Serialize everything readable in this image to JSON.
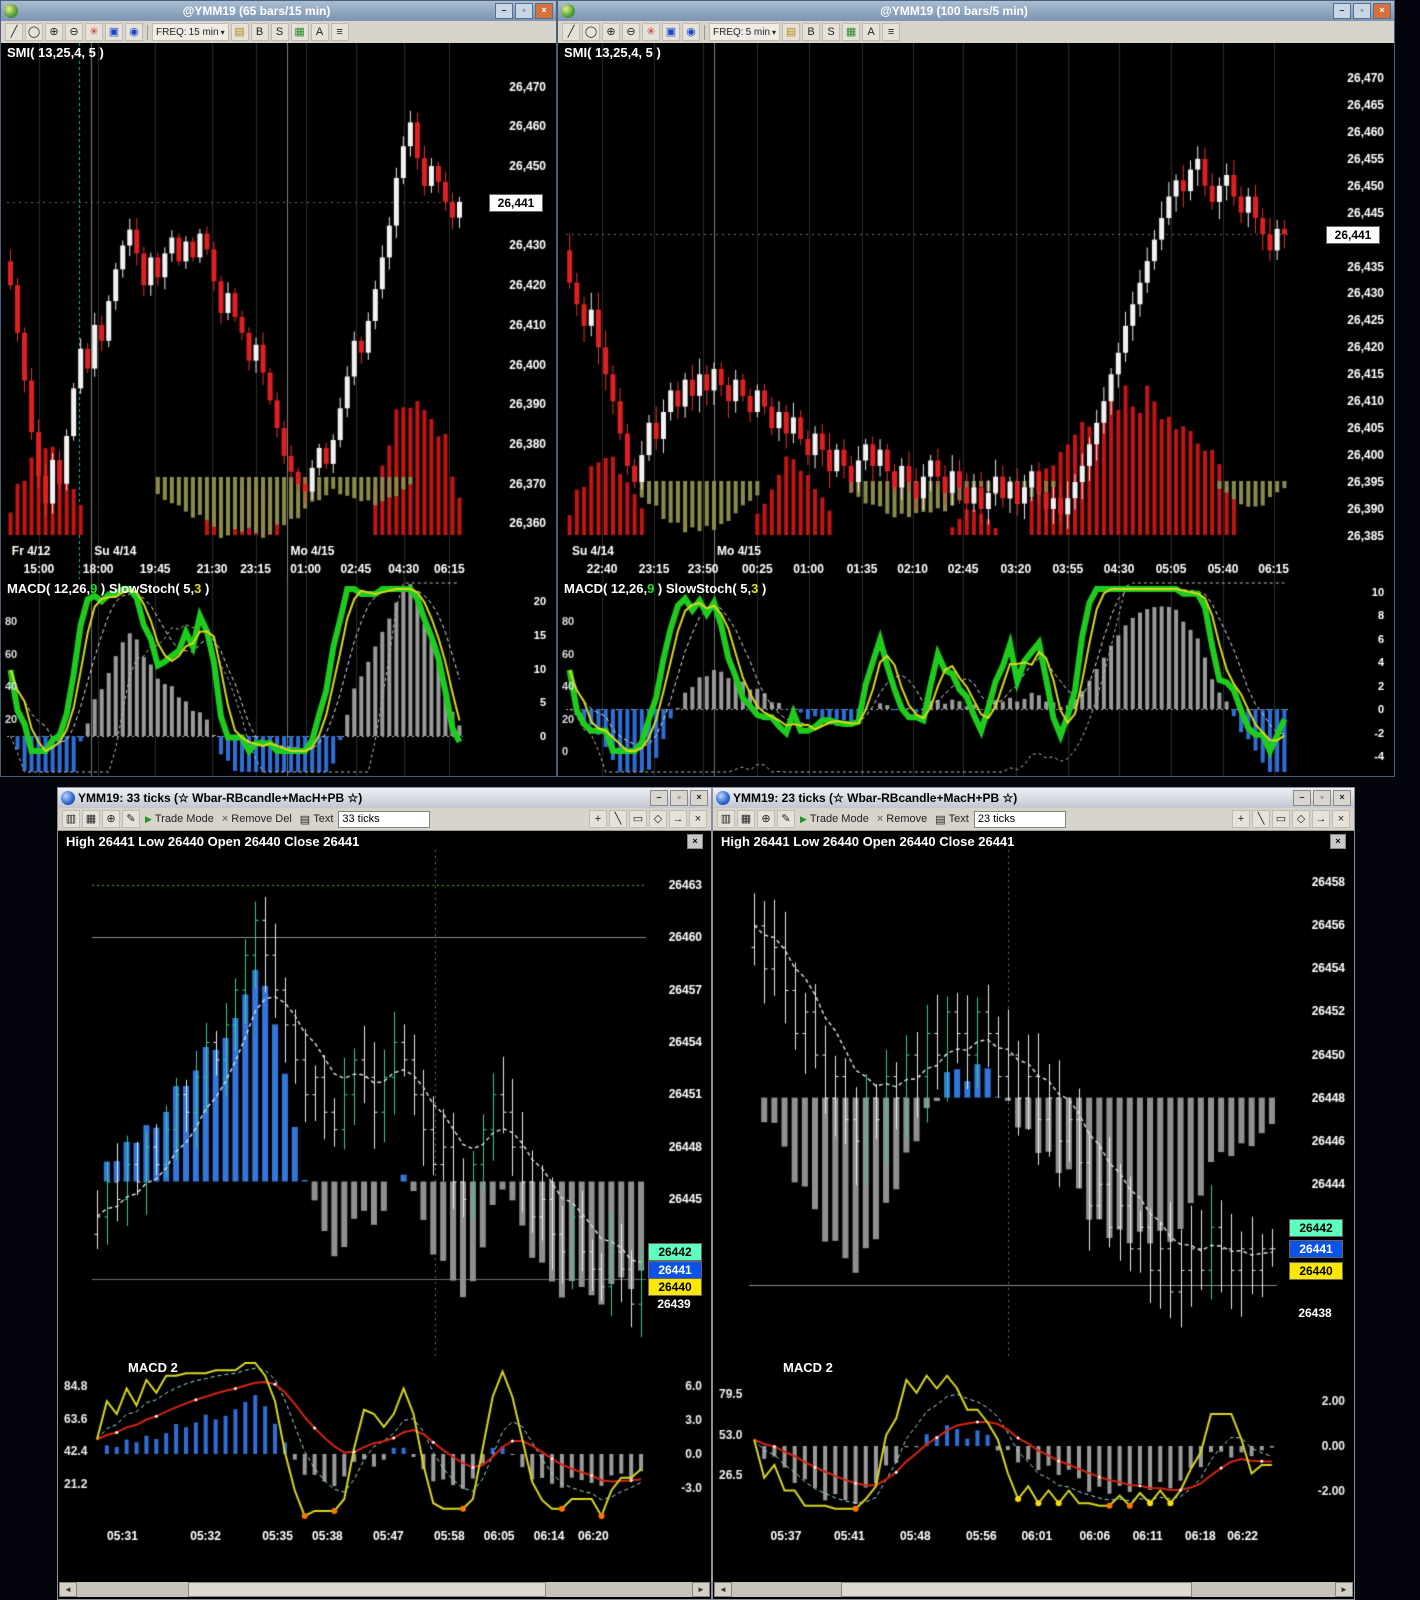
{
  "chrome": {
    "minimize": "–",
    "restore": "▫",
    "close": "×",
    "scroll_left": "◄",
    "scroll_right": "►",
    "panel_close": "×"
  },
  "icons": {
    "line": "╱",
    "ellipse": "◯",
    "zoomin": "⊕",
    "zoomout": "⊖",
    "pattern": "✳",
    "save": "▣",
    "pin": "◉",
    "folder": "▤",
    "grid": "▦",
    "menu": "≡",
    "dd": "▾",
    "candle": "▥",
    "pencil": "✎",
    "doc": "▤",
    "trade": "▶",
    "close": "×",
    "pointer": "+",
    "linedraw": "╲",
    "rect": "▭",
    "diamond": "◇",
    "arrow": "→"
  },
  "windows": {
    "tl": {
      "title": "@YMM19 (65 bars/15 min)",
      "toolbar": {
        "freq_label": "FREQ:",
        "freq_value": "15 min",
        "b": "B",
        "s": "S",
        "a": "A"
      },
      "indicator_label": "SMI( 13,25,4,  5 )",
      "price_tag": "26,441",
      "axis": [
        {
          "t": "26,470",
          "p": 26470
        },
        {
          "t": "26,460",
          "p": 26460
        },
        {
          "t": "26,450",
          "p": 26450
        },
        {
          "t": "26,430",
          "p": 26430
        },
        {
          "t": "26,420",
          "p": 26420
        },
        {
          "t": "26,410",
          "p": 26410
        },
        {
          "t": "26,400",
          "p": 26400
        },
        {
          "t": "26,390",
          "p": 26390
        },
        {
          "t": "26,380",
          "p": 26380
        },
        {
          "t": "26,370",
          "p": 26370
        },
        {
          "t": "26,360",
          "p": 26360
        }
      ],
      "dates": [
        {
          "t": "Fr 4/12",
          "x": 0.004,
          "line": false
        },
        {
          "t": "Su 4/14",
          "x": 0.185,
          "line": true
        },
        {
          "t": "Mo 4/15",
          "x": 0.615,
          "line": true
        }
      ],
      "times": [
        {
          "t": "15:00",
          "x": 0.07
        },
        {
          "t": "18:00",
          "x": 0.2
        },
        {
          "t": "19:45",
          "x": 0.325
        },
        {
          "t": "21:30",
          "x": 0.45
        },
        {
          "t": "23:15",
          "x": 0.545
        },
        {
          "t": "01:00",
          "x": 0.655
        },
        {
          "t": "02:45",
          "x": 0.765
        },
        {
          "t": "04:30",
          "x": 0.87
        },
        {
          "t": "06:15",
          "x": 0.97
        }
      ],
      "sub": {
        "macd_prefix": "MACD( 12,26,",
        "macd_param": "9",
        "macd_close": " )",
        "stoch_prefix": "SlowStoch( 5,",
        "stoch_param": "3",
        "stoch_close": " )",
        "left_labels": [
          80,
          60,
          40,
          20
        ],
        "right_labels": [
          20,
          15,
          10,
          5,
          0
        ]
      },
      "chart": {
        "pmin": 26346,
        "pmax": 26481,
        "last": 26441,
        "cursor": 0.158,
        "closes": [
          26420,
          26408,
          26396,
          26383,
          26372,
          26365,
          26376,
          26370,
          26382,
          26394,
          26404,
          26399,
          26410,
          26406,
          26416,
          26424,
          26430,
          26434,
          26428,
          26420,
          26427,
          26422,
          26428,
          26432,
          26426,
          26431,
          26427,
          26433,
          26429,
          26421,
          26413,
          26418,
          26412,
          26408,
          26401,
          26405,
          26398,
          26391,
          26384,
          26377,
          26373,
          26370,
          26368,
          26374,
          26379,
          26375,
          26381,
          26389,
          26397,
          26406,
          26403,
          26411,
          26419,
          26427,
          26435,
          26447,
          26455,
          26461,
          26452,
          26445,
          26450,
          26446,
          26441,
          26437,
          26441
        ],
        "red_segs": [
          {
            "s": 0,
            "e": 10,
            "p": 0.62
          },
          {
            "s": 28,
            "e": 38,
            "p": 0.4
          },
          {
            "s": 52,
            "e": 64,
            "p": 1.0
          }
        ],
        "olive_segs": [
          {
            "s": 21,
            "e": 45,
            "p": 0.85
          },
          {
            "s": 45,
            "e": 57,
            "p": 0.4
          }
        ]
      }
    },
    "tr": {
      "title": "@YMM19 (100 bars/5 min)",
      "toolbar": {
        "freq_label": "FREQ:",
        "freq_value": "5 min",
        "b": "B",
        "s": "S",
        "a": "A"
      },
      "indicator_label": "SMI( 13,25,4,  5 )",
      "price_tag": "26,441",
      "axis": [
        {
          "t": "26,470",
          "p": 26470
        },
        {
          "t": "26,465",
          "p": 26465
        },
        {
          "t": "26,460",
          "p": 26460
        },
        {
          "t": "26,455",
          "p": 26455
        },
        {
          "t": "26,450",
          "p": 26450
        },
        {
          "t": "26,445",
          "p": 26445
        },
        {
          "t": "26,435",
          "p": 26435
        },
        {
          "t": "26,430",
          "p": 26430
        },
        {
          "t": "26,425",
          "p": 26425
        },
        {
          "t": "26,420",
          "p": 26420
        },
        {
          "t": "26,415",
          "p": 26415
        },
        {
          "t": "26,410",
          "p": 26410
        },
        {
          "t": "26,405",
          "p": 26405
        },
        {
          "t": "26,400",
          "p": 26400
        },
        {
          "t": "26,395",
          "p": 26395
        },
        {
          "t": "26,390",
          "p": 26390
        },
        {
          "t": "26,385",
          "p": 26385
        }
      ],
      "dates": [
        {
          "t": "Su 4/14",
          "x": 0.004,
          "line": false
        },
        {
          "t": "Mo 4/15",
          "x": 0.205,
          "line": true
        }
      ],
      "times": [
        {
          "t": "22:40",
          "x": 0.05
        },
        {
          "t": "23:15",
          "x": 0.122
        },
        {
          "t": "23:50",
          "x": 0.19
        },
        {
          "t": "00:25",
          "x": 0.265
        },
        {
          "t": "01:00",
          "x": 0.336
        },
        {
          "t": "01:35",
          "x": 0.41
        },
        {
          "t": "02:10",
          "x": 0.48
        },
        {
          "t": "02:45",
          "x": 0.55
        },
        {
          "t": "03:20",
          "x": 0.623
        },
        {
          "t": "03:55",
          "x": 0.695
        },
        {
          "t": "04:30",
          "x": 0.766
        },
        {
          "t": "05:05",
          "x": 0.838
        },
        {
          "t": "05:40",
          "x": 0.91
        },
        {
          "t": "06:15",
          "x": 0.98
        }
      ],
      "sub": {
        "macd_prefix": "MACD( 12,26,",
        "macd_param": "9",
        "macd_close": " )",
        "stoch_prefix": "SlowStoch( 5,",
        "stoch_param": "3",
        "stoch_close": " )",
        "left_labels": [
          80,
          60,
          40,
          20,
          0
        ],
        "right_labels": [
          10,
          8,
          6,
          4,
          2,
          0,
          -2,
          -4
        ]
      },
      "chart": {
        "pmin": 26377,
        "pmax": 26476.5,
        "last": 26441,
        "closes": [
          26432,
          26428,
          26424,
          26427,
          26420,
          26415,
          26410,
          26404,
          26398,
          26395,
          26400,
          26406,
          26403,
          26408,
          26412,
          26409,
          26414,
          26411,
          26415,
          26412,
          26416,
          26413,
          26410,
          26414,
          26411,
          26408,
          26412,
          26409,
          26405,
          26408,
          26404,
          26407,
          26403,
          26400,
          26404,
          26401,
          26397,
          26401,
          26398,
          26395,
          26399,
          26402,
          26398,
          26401,
          26397,
          26394,
          26398,
          26395,
          26392,
          26396,
          26399,
          26396,
          26393,
          26397,
          26394,
          26391,
          26394,
          26390,
          26393,
          26396,
          26392,
          26395,
          26391,
          26394,
          26397,
          26393,
          26390,
          26392,
          26389,
          26392,
          26395,
          26398,
          26402,
          26406,
          26410,
          26415,
          26419,
          26424,
          26428,
          26432,
          26436,
          26440,
          26444,
          26448,
          26451,
          26449,
          26453,
          26455,
          26450,
          26447,
          26450,
          26452,
          26448,
          26445,
          26448,
          26444,
          26441,
          26438,
          26442,
          26441
        ],
        "red_segs": [
          {
            "s": 0,
            "e": 10,
            "p": 0.55
          },
          {
            "s": 26,
            "e": 36,
            "p": 0.5
          },
          {
            "s": 53,
            "e": 59,
            "p": 0.18
          },
          {
            "s": 64,
            "e": 92,
            "p": 1.0
          }
        ],
        "olive_segs": [
          {
            "s": 10,
            "e": 26,
            "p": 0.8
          },
          {
            "s": 39,
            "e": 56,
            "p": 0.6
          },
          {
            "s": 57,
            "e": 67,
            "p": 0.35
          },
          {
            "s": 90,
            "e": 99,
            "p": 0.4
          }
        ]
      }
    },
    "bl": {
      "title": "YMM19: 33 ticks (☆ Wbar-RBcandle+MacH+PB ☆)",
      "toolbar": {
        "trade_mode": "Trade Mode",
        "remove": "Remove Del",
        "text": "Text",
        "ticks": "33 ticks"
      },
      "ohlc": "High 26441  Low 26440  Open 26440  Close 26441",
      "axis": [
        {
          "t": "26463",
          "p": 26463
        },
        {
          "t": "26460",
          "p": 26460
        },
        {
          "t": "26457",
          "p": 26457
        },
        {
          "t": "26454",
          "p": 26454
        },
        {
          "t": "26451",
          "p": 26451
        },
        {
          "t": "26448",
          "p": 26448
        },
        {
          "t": "26445",
          "p": 26445
        }
      ],
      "tags": [
        {
          "t": "26442",
          "p": 26442,
          "bg": "#5fffc0",
          "fg": "#000000"
        },
        {
          "t": "26441",
          "p": 26441,
          "bg": "#0a52e8",
          "fg": "#ffffff"
        },
        {
          "t": "26440",
          "p": 26440,
          "bg": "#ffe800",
          "fg": "#000000"
        },
        {
          "t": "26439",
          "p": 26439,
          "bg": "none",
          "fg": "#ffffff"
        }
      ],
      "macd2": {
        "label": "MACD 2",
        "left": [
          "84.8",
          "63.6",
          "42.4",
          "21.2"
        ],
        "right": [
          "6.0",
          "3.0",
          "0.0",
          "-3.0"
        ]
      },
      "times": [
        {
          "t": "05:31",
          "x": 0.055
        },
        {
          "t": "05:32",
          "x": 0.205
        },
        {
          "t": "05:35",
          "x": 0.335
        },
        {
          "t": "05:38",
          "x": 0.425
        },
        {
          "t": "05:47",
          "x": 0.535
        },
        {
          "t": "05:58",
          "x": 0.645
        },
        {
          "t": "06:05",
          "x": 0.735
        },
        {
          "t": "06:14",
          "x": 0.825
        },
        {
          "t": "06:20",
          "x": 0.905
        }
      ],
      "chart": {
        "pmin": 26436,
        "pmax": 26465,
        "cursor": 0.62,
        "mach_base": 26446,
        "hlines": [
          {
            "p": 26463,
            "c": "#2db82d",
            "d": [
              2,
              3
            ]
          },
          {
            "p": 26460,
            "c": "#8a8a8a",
            "d": []
          },
          {
            "p": 26440.4,
            "c": "#6a6a6a",
            "d": []
          }
        ],
        "closes": [
          26444,
          26446,
          26445,
          26447,
          26446,
          26448,
          26447,
          26449,
          26451,
          26450,
          26452,
          26454,
          26453,
          26455,
          26457,
          26459,
          26461,
          26459,
          26457,
          26455,
          26453,
          26451,
          26452,
          26450,
          26449,
          26451,
          26453,
          26452,
          26450,
          26452,
          26454,
          26453,
          26451,
          26449,
          26447,
          26448,
          26446,
          26445,
          26447,
          26449,
          26451,
          26450,
          26448,
          26446,
          26444,
          26445,
          26443,
          26442,
          26444,
          26442,
          26441,
          26440,
          26442,
          26441,
          26439,
          26441
        ]
      }
    },
    "br": {
      "title": "YMM19: 23 ticks (☆ Wbar-RBcandle+MacH+PB ☆)",
      "toolbar": {
        "trade_mode": "Trade Mode",
        "remove": "Remove",
        "text": "Text",
        "ticks": "23 ticks"
      },
      "ohlc": "High 26441  Low 26440  Open 26440  Close 26441",
      "axis": [
        {
          "t": "26458",
          "p": 26458
        },
        {
          "t": "26456",
          "p": 26456
        },
        {
          "t": "26454",
          "p": 26454
        },
        {
          "t": "26452",
          "p": 26452
        },
        {
          "t": "26450",
          "p": 26450
        },
        {
          "t": "26448",
          "p": 26448
        },
        {
          "t": "26446",
          "p": 26446
        },
        {
          "t": "26444",
          "p": 26444
        }
      ],
      "tags": [
        {
          "t": "26442",
          "p": 26442,
          "bg": "#5fffc0",
          "fg": "#000000"
        },
        {
          "t": "26441",
          "p": 26441,
          "bg": "#0a52e8",
          "fg": "#ffffff"
        },
        {
          "t": "26440",
          "p": 26440,
          "bg": "#ffe800",
          "fg": "#000000"
        },
        {
          "t": "26438",
          "p": 26438,
          "bg": "none",
          "fg": "#ffffff"
        }
      ],
      "macd2": {
        "label": "MACD 2",
        "left": [
          "79.5",
          "53.0",
          "26.5"
        ],
        "right": [
          "2.00",
          "0.00",
          "-2.00"
        ]
      },
      "times": [
        {
          "t": "05:37",
          "x": 0.07
        },
        {
          "t": "05:41",
          "x": 0.19
        },
        {
          "t": "05:48",
          "x": 0.315
        },
        {
          "t": "05:56",
          "x": 0.44
        },
        {
          "t": "06:01",
          "x": 0.545
        },
        {
          "t": "06:06",
          "x": 0.655
        },
        {
          "t": "06:11",
          "x": 0.755
        },
        {
          "t": "06:18",
          "x": 0.855
        },
        {
          "t": "06:22",
          "x": 0.935
        }
      ],
      "chart": {
        "pmin": 26436,
        "pmax": 26459.5,
        "cursor": 0.49,
        "mach_base": 26448,
        "hlines": [
          {
            "p": 26439.3,
            "c": "#8a8a8a",
            "d": []
          }
        ],
        "closes": [
          26456,
          26454,
          26455,
          26453,
          26451,
          26452,
          26450,
          26448,
          26449,
          26447,
          26446,
          26448,
          26447,
          26449,
          26448,
          26450,
          26449,
          26451,
          26450,
          26452,
          26451,
          26450,
          26452,
          26451,
          26449,
          26450,
          26448,
          26449,
          26447,
          26448,
          26446,
          26447,
          26445,
          26443,
          26444,
          26442,
          26443,
          26441,
          26442,
          26440,
          26441,
          26439,
          26440,
          26441,
          26440,
          26442,
          26441,
          26440,
          26441,
          26440,
          26441,
          26441
        ]
      }
    }
  }
}
